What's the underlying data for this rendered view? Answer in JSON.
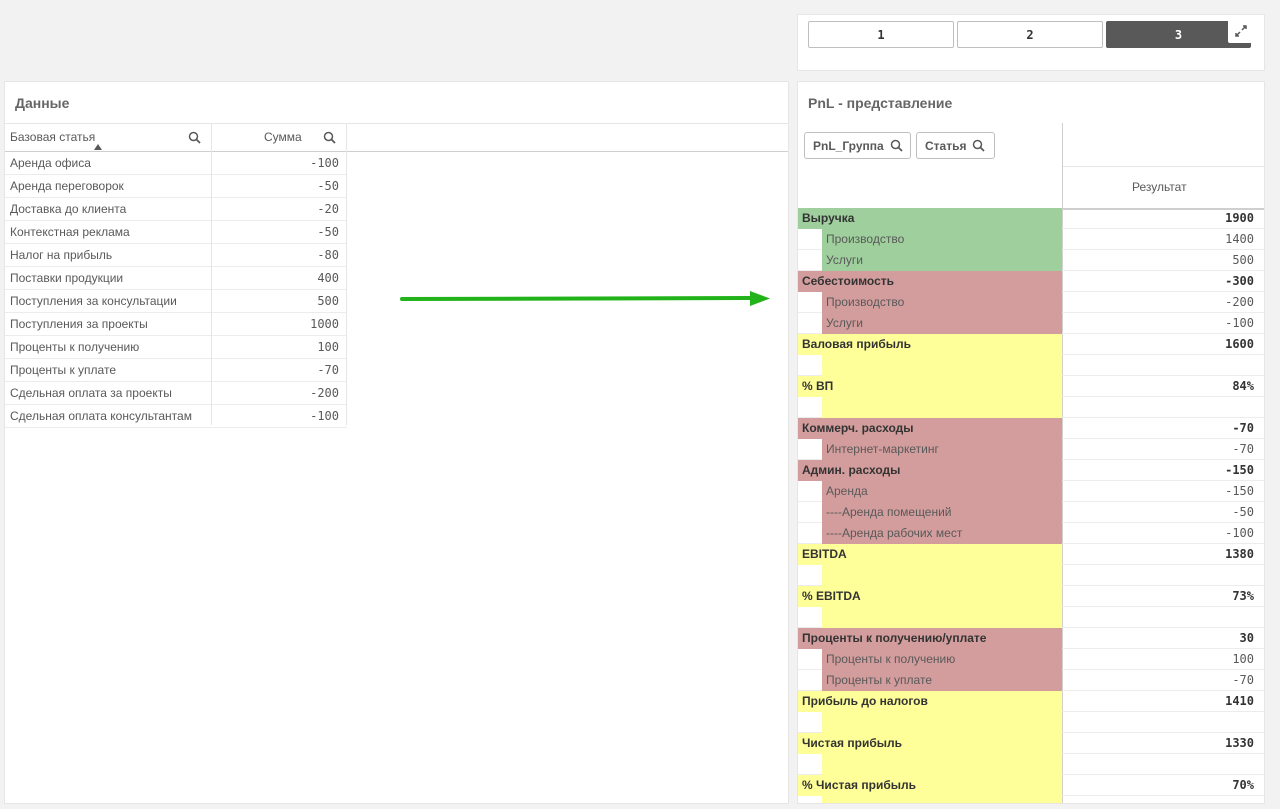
{
  "pages": {
    "buttons": [
      {
        "label": "1",
        "active": false
      },
      {
        "label": "2",
        "active": false
      },
      {
        "label": "3",
        "active": true
      }
    ]
  },
  "data_panel": {
    "title": "Данные",
    "columns": [
      "Базовая статья",
      "Сумма"
    ],
    "rows": [
      {
        "item": "Аренда офиса",
        "sum": "-100"
      },
      {
        "item": "Аренда переговорок",
        "sum": "-50"
      },
      {
        "item": "Доставка до клиента",
        "sum": "-20"
      },
      {
        "item": "Контекстная реклама",
        "sum": "-50"
      },
      {
        "item": "Налог на прибыль",
        "sum": "-80"
      },
      {
        "item": "Поставки продукции",
        "sum": "400"
      },
      {
        "item": "Поступления за консультации",
        "sum": "500"
      },
      {
        "item": "Поступления за проекты",
        "sum": "1000"
      },
      {
        "item": "Проценты к получению",
        "sum": "100"
      },
      {
        "item": "Проценты к уплате",
        "sum": "-70"
      },
      {
        "item": "Сдельная оплата за проекты",
        "sum": "-200"
      },
      {
        "item": "Сдельная оплата консультантам",
        "sum": "-100"
      }
    ]
  },
  "pnl_panel": {
    "title": "PnL - представление",
    "filters": [
      "PnL_Группа",
      "Статья"
    ],
    "result_header": "Результат",
    "rows": [
      {
        "label": "Выручка",
        "value": "1900",
        "level": 0,
        "color": "green"
      },
      {
        "label": "Производство",
        "value": "1400",
        "level": 1,
        "color": "green"
      },
      {
        "label": "Услуги",
        "value": "500",
        "level": 1,
        "color": "green"
      },
      {
        "label": "Себестоимость",
        "value": "-300",
        "level": 0,
        "color": "red"
      },
      {
        "label": "Производство",
        "value": "-200",
        "level": 1,
        "color": "red"
      },
      {
        "label": "Услуги",
        "value": "-100",
        "level": 1,
        "color": "red"
      },
      {
        "label": "Валовая прибыль",
        "value": "1600",
        "level": 0,
        "color": "yellow"
      },
      {
        "label": "",
        "value": "",
        "level": 1,
        "color": "yellow"
      },
      {
        "label": "% ВП",
        "value": "84%",
        "level": 0,
        "color": "yellow"
      },
      {
        "label": "",
        "value": "",
        "level": 1,
        "color": "yellow"
      },
      {
        "label": "Коммерч. расходы",
        "value": "-70",
        "level": 0,
        "color": "red"
      },
      {
        "label": "Интернет-маркетинг",
        "value": "-70",
        "level": 1,
        "color": "red"
      },
      {
        "label": "Админ. расходы",
        "value": "-150",
        "level": 0,
        "color": "red"
      },
      {
        "label": "Аренда",
        "value": "-150",
        "level": 1,
        "color": "red"
      },
      {
        "label": "----Аренда помещений",
        "value": "-50",
        "level": 1,
        "color": "red"
      },
      {
        "label": "----Аренда рабочих мест",
        "value": "-100",
        "level": 1,
        "color": "red"
      },
      {
        "label": "EBITDA",
        "value": "1380",
        "level": 0,
        "color": "yellow"
      },
      {
        "label": "",
        "value": "",
        "level": 1,
        "color": "yellow"
      },
      {
        "label": "% EBITDA",
        "value": "73%",
        "level": 0,
        "color": "yellow"
      },
      {
        "label": "",
        "value": "",
        "level": 1,
        "color": "yellow"
      },
      {
        "label": "Проценты к получению/уплате",
        "value": "30",
        "level": 0,
        "color": "red"
      },
      {
        "label": "Проценты к получению",
        "value": "100",
        "level": 1,
        "color": "red"
      },
      {
        "label": "Проценты к уплате",
        "value": "-70",
        "level": 1,
        "color": "red"
      },
      {
        "label": "Прибыль до налогов",
        "value": "1410",
        "level": 0,
        "color": "yellow"
      },
      {
        "label": "",
        "value": "",
        "level": 1,
        "color": "yellow"
      },
      {
        "label": "Чистая прибыль",
        "value": "1330",
        "level": 0,
        "color": "yellow"
      },
      {
        "label": "",
        "value": "",
        "level": 1,
        "color": "yellow"
      },
      {
        "label": "% Чистая прибыль",
        "value": "70%",
        "level": 0,
        "color": "yellow"
      },
      {
        "label": "",
        "value": "",
        "level": 1,
        "color": "yellow"
      }
    ]
  },
  "colors": {
    "green": "#9ecf9c",
    "red": "#d39d9d",
    "yellow": "#ffff99",
    "arrow": "#22b21a"
  },
  "icons": [
    "search-icon",
    "expand-icon",
    "sort-ascending-icon",
    "arrow-right-icon"
  ]
}
